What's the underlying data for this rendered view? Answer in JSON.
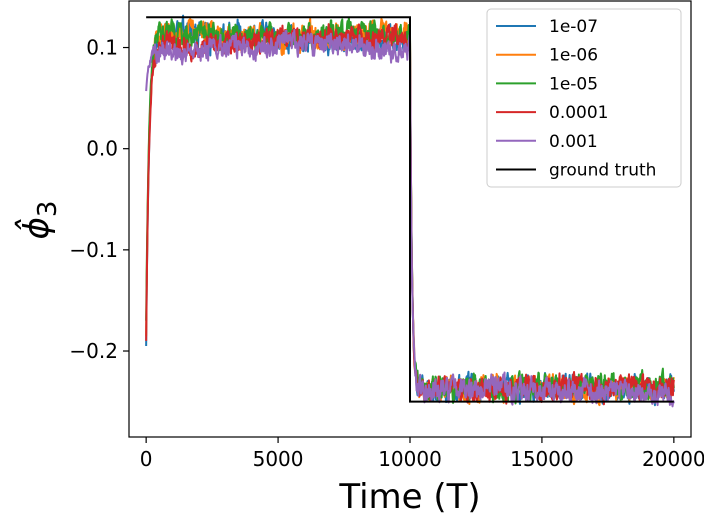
{
  "chart_data": {
    "type": "line",
    "xlabel": "Time (T)",
    "ylabel": "ϕ̂3",
    "ylabel_parts": {
      "main": "ϕ",
      "hat": "̂",
      "sub": "3"
    },
    "xlim": [
      -650,
      20650
    ],
    "ylim": [
      -0.285,
      0.146
    ],
    "xticks": [
      0,
      5000,
      10000,
      15000,
      20000
    ],
    "xtick_labels": [
      "0",
      "5000",
      "10000",
      "15000",
      "20000"
    ],
    "yticks": [
      -0.2,
      -0.1,
      0.0,
      0.1
    ],
    "ytick_labels": [
      "−0.2",
      "−0.1",
      "0.0",
      "0.1"
    ],
    "grid": false,
    "legend_position": "top-right",
    "series": [
      {
        "name": "1e-07",
        "color": "#1f77b4",
        "start": -0.195,
        "plateau_high": 0.11,
        "plateau_low": -0.236,
        "noise": 0.0095
      },
      {
        "name": "1e-06",
        "color": "#ff7f0e",
        "start": -0.185,
        "plateau_high": 0.112,
        "plateau_low": -0.236,
        "noise": 0.009
      },
      {
        "name": "1e-05",
        "color": "#2ca02c",
        "start": -0.17,
        "plateau_high": 0.114,
        "plateau_low": -0.235,
        "noise": 0.009
      },
      {
        "name": "0.0001",
        "color": "#d62728",
        "start": -0.19,
        "plateau_high": 0.108,
        "plateau_low": -0.238,
        "noise": 0.009
      },
      {
        "name": "0.001",
        "color": "#9467bd",
        "start": 0.057,
        "plateau_high": 0.1,
        "plateau_low": -0.24,
        "noise": 0.0085
      }
    ],
    "ground_truth": {
      "name": "ground truth",
      "color": "#000000",
      "x": [
        0,
        10000,
        10000,
        20000
      ],
      "y": [
        0.13,
        0.13,
        -0.25,
        -0.25
      ]
    }
  }
}
